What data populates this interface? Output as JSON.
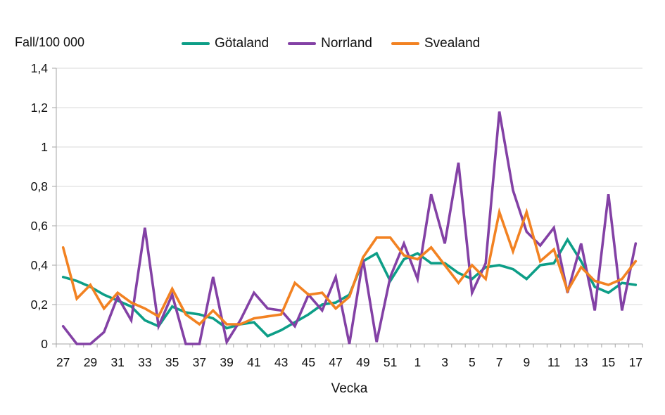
{
  "chart": {
    "background": "#ffffff",
    "grid_color": "#d9d9d9",
    "axis_color": "#a6a6a6",
    "text_color": "#111111"
  },
  "chart_data": {
    "type": "line",
    "title": "Fall/100 000",
    "xlabel": "Vecka",
    "ylabel": "Fall/100 000",
    "ylim": [
      0,
      1.4
    ],
    "grid": "horizontal",
    "legend_position": "top",
    "y_ticks": [
      0,
      0.2,
      0.4,
      0.6,
      0.8,
      1,
      1.2,
      1.4
    ],
    "y_tick_labels": [
      "0",
      "0,2",
      "0,4",
      "0,6",
      "0,8",
      "1",
      "1,2",
      "1,4"
    ],
    "x_tick_labels": [
      "27",
      "29",
      "31",
      "33",
      "35",
      "37",
      "39",
      "41",
      "43",
      "45",
      "47",
      "49",
      "51",
      "1",
      "3",
      "5",
      "7",
      "9",
      "11",
      "13",
      "15",
      "17"
    ],
    "categories": [
      "27",
      "28",
      "29",
      "30",
      "31",
      "32",
      "33",
      "34",
      "35",
      "36",
      "37",
      "38",
      "39",
      "40",
      "41",
      "42",
      "43",
      "44",
      "45",
      "46",
      "47",
      "48",
      "49",
      "50",
      "51",
      "52",
      "1",
      "2",
      "3",
      "4",
      "5",
      "6",
      "7",
      "8",
      "9",
      "10",
      "11",
      "12",
      "13",
      "14",
      "15",
      "16",
      "17"
    ],
    "series": [
      {
        "name": "Götaland",
        "slug": "gotaland",
        "color": "#0d9e87",
        "values": [
          0.34,
          0.32,
          0.29,
          0.25,
          0.22,
          0.19,
          0.12,
          0.09,
          0.19,
          0.16,
          0.15,
          0.13,
          0.08,
          0.1,
          0.11,
          0.04,
          0.07,
          0.11,
          0.15,
          0.2,
          0.21,
          0.25,
          0.42,
          0.46,
          0.32,
          0.43,
          0.46,
          0.41,
          0.41,
          0.36,
          0.33,
          0.39,
          0.4,
          0.38,
          0.33,
          0.4,
          0.41,
          0.53,
          0.42,
          0.29,
          0.26,
          0.31,
          0.3
        ]
      },
      {
        "name": "Norrland",
        "slug": "norrland",
        "color": "#8341a5",
        "values": [
          0.09,
          0.0,
          0.0,
          0.06,
          0.24,
          0.12,
          0.59,
          0.09,
          0.25,
          0.0,
          0.0,
          0.34,
          0.01,
          0.12,
          0.26,
          0.18,
          0.17,
          0.09,
          0.25,
          0.17,
          0.34,
          0.0,
          0.43,
          0.01,
          0.34,
          0.51,
          0.33,
          0.76,
          0.51,
          0.92,
          0.26,
          0.41,
          1.18,
          0.78,
          0.57,
          0.5,
          0.59,
          0.26,
          0.51,
          0.17,
          0.76,
          0.17,
          0.51
        ]
      },
      {
        "name": "Svealand",
        "slug": "svealand",
        "color": "#f28222",
        "values": [
          0.49,
          0.23,
          0.3,
          0.18,
          0.26,
          0.21,
          0.18,
          0.14,
          0.28,
          0.15,
          0.1,
          0.17,
          0.1,
          0.1,
          0.13,
          0.14,
          0.15,
          0.31,
          0.25,
          0.26,
          0.18,
          0.24,
          0.44,
          0.54,
          0.54,
          0.45,
          0.43,
          0.49,
          0.4,
          0.31,
          0.4,
          0.33,
          0.67,
          0.47,
          0.67,
          0.42,
          0.48,
          0.27,
          0.39,
          0.32,
          0.3,
          0.33,
          0.42
        ]
      }
    ]
  }
}
